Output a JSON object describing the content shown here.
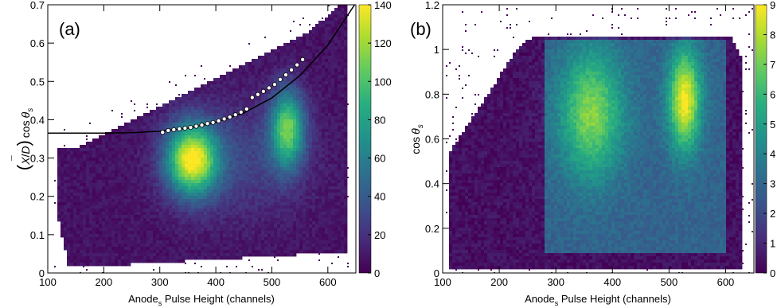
{
  "chart_data": [
    {
      "type": "heatmap",
      "panel_label": "(a)",
      "xlabel": "Anodes Pulse Height (channels)",
      "xlabel_main": "Anode",
      "xlabel_sub": "s",
      "xlabel_rest": " Pulse Height (channels)",
      "ylabel": "(X̄/D) cos θs",
      "ylabel_parts": {
        "open": "(",
        "xbar": "X",
        "slash": "/",
        "d": "D",
        "close": ")",
        "cos": "cos",
        "theta": "θ",
        "sub": "s"
      },
      "xlim": [
        100,
        650
      ],
      "ylim": [
        0,
        0.7
      ],
      "x_ticks": [
        "100",
        "200",
        "300",
        "400",
        "500",
        "600"
      ],
      "y_ticks": [
        "0",
        "0.1",
        "0.2",
        "0.3",
        "0.4",
        "0.5",
        "0.6",
        "0.7"
      ],
      "colorbar": {
        "min": 0,
        "max": 140,
        "ticks": [
          "0",
          "20",
          "40",
          "60",
          "80",
          "100",
          "120",
          "140"
        ]
      },
      "fit_curve": {
        "x": [
          100,
          200,
          250,
          300,
          350,
          400,
          450,
          500,
          550,
          600,
          650
        ],
        "y": [
          0.365,
          0.365,
          0.366,
          0.37,
          0.378,
          0.393,
          0.418,
          0.457,
          0.515,
          0.595,
          0.705
        ]
      },
      "points": {
        "x": [
          305,
          315,
          325,
          335,
          345,
          355,
          365,
          375,
          385,
          395,
          405,
          415,
          425,
          435,
          445,
          455,
          465,
          475,
          485,
          495,
          505,
          515,
          525,
          535,
          545,
          555
        ],
        "y": [
          0.367,
          0.372,
          0.374,
          0.376,
          0.378,
          0.38,
          0.383,
          0.386,
          0.39,
          0.393,
          0.397,
          0.402,
          0.407,
          0.413,
          0.42,
          0.428,
          0.458,
          0.466,
          0.474,
          0.483,
          0.492,
          0.505,
          0.517,
          0.53,
          0.543,
          0.557
        ]
      },
      "hot_spots": [
        {
          "x": 355,
          "y": 0.3,
          "intensity": 130
        },
        {
          "x": 525,
          "y": 0.38,
          "intensity": 95
        }
      ]
    },
    {
      "type": "heatmap",
      "panel_label": "(b)",
      "xlabel": "Anodes Pulse Height (channels)",
      "xlabel_main": "Anode",
      "xlabel_sub": "s",
      "xlabel_rest": " Pulse Height (channels)",
      "ylabel": "cos θs",
      "ylabel_parts": {
        "cos": "cos",
        "theta": "θ",
        "sub": "s"
      },
      "xlim": [
        100,
        650
      ],
      "ylim": [
        0,
        1.2
      ],
      "x_ticks": [
        "100",
        "200",
        "300",
        "400",
        "500",
        "600"
      ],
      "y_ticks": [
        "0",
        "0.2",
        "0.4",
        "0.6",
        "0.8",
        "1",
        "1.2"
      ],
      "colorbar": {
        "min": 0,
        "max": 9,
        "ticks": [
          "0",
          "1",
          "2",
          "3",
          "4",
          "5",
          "6",
          "7",
          "8",
          "9"
        ]
      },
      "hot_spots": [
        {
          "x": 355,
          "y": 0.75,
          "intensity": 7
        },
        {
          "x": 525,
          "y": 0.78,
          "intensity": 8.8
        }
      ]
    }
  ]
}
